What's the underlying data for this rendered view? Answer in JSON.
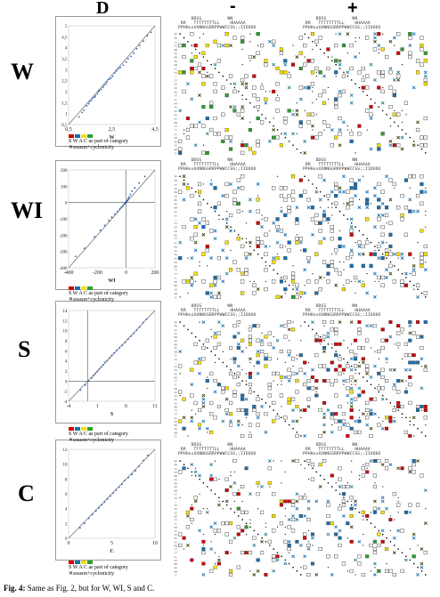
{
  "figure": {
    "top_label": "D",
    "caption_bold": "Fig. 4:",
    "caption_text": " Same as Fig. 2, but for W, WI, S and C."
  },
  "matrix_headers": {
    "minus": "-",
    "plus": "+",
    "line1": "     DDSS          NN",
    "line2": " RR   TTTTTTTTLL    HHAAAA",
    "line3": "PPHHxxXXNNGGRRPPWWCCSS;;IIOOOO"
  },
  "legend": {
    "line1": "S W A C as part of category",
    "line2": "season+cyclonicity",
    "colors": [
      "#d40000",
      "#1a6fb0",
      "#f5e100",
      "#2aa02a"
    ]
  },
  "row_labels": [
    "PP",
    "PH",
    "xx",
    "XX",
    "NN",
    "GG",
    "RR",
    "PP",
    "WW",
    "CC",
    "SS",
    ";;",
    "II",
    "OO",
    "OO",
    "DD",
    "TT",
    "LL",
    "HH",
    "AA",
    "AA",
    "AA",
    "SS",
    "NN",
    "TT",
    "TT",
    "LL",
    "HH",
    "RR",
    "GG",
    "WW",
    "CC",
    "II",
    "OO",
    "DD"
  ],
  "chart_data": [
    {
      "type": "scatter",
      "panel": "W",
      "xlabel": "W",
      "xlim": [
        0.5,
        5
      ],
      "ylim": [
        0.5,
        5
      ],
      "xticks": [
        "0,5",
        "2,5",
        "4,5"
      ],
      "yticks": [
        "0,5",
        "1",
        "1,5",
        "2",
        "2,5",
        "3",
        "3,5",
        "4",
        "4,5",
        "5"
      ],
      "points": [
        [
          1.05,
          0.85
        ],
        [
          1.2,
          1.05
        ],
        [
          1.3,
          1.15
        ],
        [
          1.45,
          1.35
        ],
        [
          1.55,
          1.45
        ],
        [
          1.6,
          1.55
        ],
        [
          1.7,
          1.6
        ],
        [
          1.75,
          1.7
        ],
        [
          1.85,
          1.75
        ],
        [
          1.9,
          1.8
        ],
        [
          2.0,
          1.9
        ],
        [
          2.05,
          2.0
        ],
        [
          2.1,
          2.05
        ],
        [
          2.2,
          2.1
        ],
        [
          2.3,
          2.2
        ],
        [
          2.35,
          2.3
        ],
        [
          2.45,
          2.35
        ],
        [
          2.5,
          2.45
        ],
        [
          2.6,
          2.55
        ],
        [
          2.7,
          2.6
        ],
        [
          2.8,
          2.7
        ],
        [
          2.9,
          2.85
        ],
        [
          3.0,
          2.95
        ],
        [
          3.1,
          3.05
        ],
        [
          3.2,
          3.1
        ],
        [
          3.35,
          3.2
        ],
        [
          3.5,
          3.35
        ],
        [
          3.6,
          3.5
        ],
        [
          3.75,
          3.6
        ],
        [
          3.9,
          3.75
        ],
        [
          4.05,
          3.95
        ],
        [
          4.2,
          4.1
        ],
        [
          4.4,
          4.3
        ],
        [
          4.6,
          4.55
        ],
        [
          4.8,
          4.7
        ]
      ]
    },
    {
      "type": "scatter",
      "panel": "WI",
      "xlabel": "WI",
      "xlim": [
        -400,
        200
      ],
      "ylim": [
        -400,
        200
      ],
      "xticks": [
        "-400",
        "-200",
        "0",
        "200"
      ],
      "yticks": [
        "200",
        "100",
        "0",
        "-100",
        "-200",
        "-300",
        "-400"
      ],
      "points": [
        [
          -350,
          -330
        ],
        [
          -290,
          -280
        ],
        [
          -220,
          -210
        ],
        [
          -180,
          -170
        ],
        [
          -150,
          -140
        ],
        [
          -120,
          -110
        ],
        [
          -100,
          -90
        ],
        [
          -80,
          -70
        ],
        [
          -60,
          -55
        ],
        [
          -45,
          -40
        ],
        [
          -35,
          -30
        ],
        [
          -25,
          -20
        ],
        [
          -15,
          -10
        ],
        [
          -10,
          -5
        ],
        [
          -5,
          0
        ],
        [
          0,
          5
        ],
        [
          5,
          10
        ],
        [
          10,
          15
        ],
        [
          15,
          25
        ],
        [
          20,
          35
        ],
        [
          30,
          50
        ],
        [
          40,
          70
        ],
        [
          60,
          90
        ],
        [
          90,
          120
        ],
        [
          130,
          160
        ]
      ]
    },
    {
      "type": "scatter",
      "panel": "S",
      "xlabel": "S",
      "xlim": [
        -4,
        14
      ],
      "ylim": [
        -4,
        14
      ],
      "xticks": [
        "-4",
        "1",
        "6",
        "11"
      ],
      "yticks": [
        "14",
        "12",
        "10",
        "8",
        "6",
        "4",
        "2",
        "0",
        "-2",
        "-4"
      ],
      "points": [
        [
          -1.5,
          -1.8
        ],
        [
          -0.5,
          -0.8
        ],
        [
          0.2,
          0.0
        ],
        [
          0.8,
          0.6
        ],
        [
          1.2,
          1.1
        ],
        [
          1.6,
          1.5
        ],
        [
          2.0,
          1.9
        ],
        [
          2.4,
          2.4
        ],
        [
          2.8,
          2.8
        ],
        [
          3.2,
          3.2
        ],
        [
          3.6,
          3.7
        ],
        [
          4.0,
          4.1
        ],
        [
          4.5,
          4.6
        ],
        [
          5.0,
          5.1
        ],
        [
          5.5,
          5.6
        ],
        [
          6.0,
          6.1
        ],
        [
          6.6,
          6.6
        ],
        [
          7.2,
          7.1
        ],
        [
          7.8,
          7.7
        ],
        [
          8.4,
          8.3
        ],
        [
          9.0,
          8.9
        ],
        [
          9.6,
          9.5
        ],
        [
          10.2,
          10.1
        ],
        [
          10.8,
          10.7
        ],
        [
          11.5,
          11.6
        ],
        [
          12.2,
          12.3
        ]
      ]
    },
    {
      "type": "scatter",
      "panel": "C",
      "xlabel": "C",
      "xlim": [
        0,
        12
      ],
      "ylim": [
        0,
        12
      ],
      "xticks": [
        "0",
        "5",
        "10"
      ],
      "yticks": [
        "12",
        "10",
        "8",
        "6",
        "4",
        "2",
        "0"
      ],
      "points": [
        [
          1.6,
          1.4
        ],
        [
          2.2,
          2.0
        ],
        [
          2.8,
          2.7
        ],
        [
          3.3,
          3.2
        ],
        [
          3.8,
          3.7
        ],
        [
          4.2,
          4.1
        ],
        [
          4.6,
          4.5
        ],
        [
          5.0,
          4.9
        ],
        [
          5.4,
          5.3
        ],
        [
          5.8,
          5.7
        ],
        [
          6.2,
          6.1
        ],
        [
          6.6,
          6.5
        ],
        [
          7.0,
          6.9
        ],
        [
          7.4,
          7.3
        ],
        [
          7.8,
          7.8
        ],
        [
          8.3,
          8.2
        ],
        [
          8.8,
          8.6
        ],
        [
          9.3,
          9.1
        ],
        [
          9.8,
          9.7
        ],
        [
          10.4,
          10.5
        ],
        [
          11.0,
          11.2
        ]
      ]
    }
  ],
  "panel_titles": [
    "W",
    "WI",
    "S",
    "C"
  ]
}
